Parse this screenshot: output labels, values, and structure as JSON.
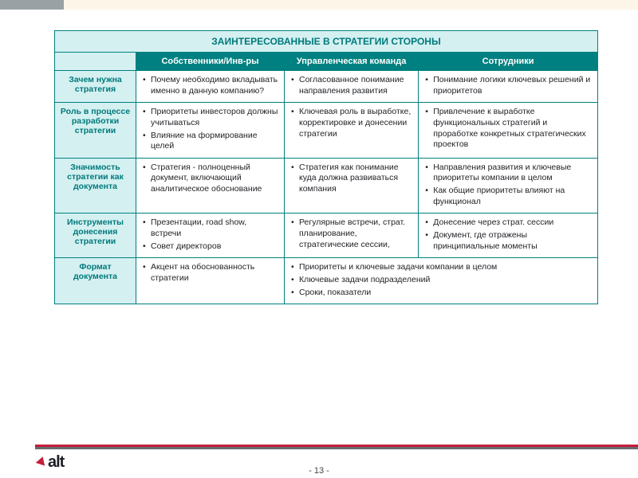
{
  "table": {
    "title": "ЗАИНТЕРЕСОВАННЫЕ В СТРАТЕГИИ СТОРОНЫ",
    "columns": [
      "Собственники/Инв-ры",
      "Управленческая команда",
      "Сотрудники"
    ],
    "rowHeaders": [
      "Зачем нужна стратегия",
      "Роль в процессе разработки стратегии",
      "Значимость стратегии как документа",
      "Инструменты донесения стратегии",
      "Формат документа"
    ],
    "rows": [
      {
        "c1": [
          "Почему необходимо вкладывать именно в данную компанию?"
        ],
        "c2": [
          "Согласованное понимание направления развития"
        ],
        "c3": [
          "Понимание логики ключевых решений и приоритетов"
        ]
      },
      {
        "c1": [
          "Приоритеты инвесторов должны учитываться",
          "Влияние на формирование целей"
        ],
        "c2": [
          "Ключевая роль в выработке, корректировке и донесении стратегии"
        ],
        "c3": [
          "Привлечение к выработке функциональных стратегий и проработке конкретных стратегических проектов"
        ]
      },
      {
        "c1": [
          "Стратегия - полноценный документ, включающий аналитическое обоснование"
        ],
        "c2": [
          "Стратегия как понимание куда должна развиваться компания"
        ],
        "c3": [
          "Направления развития и ключевые приоритеты компании в целом",
          "Как общие приоритеты влияют на функционал"
        ]
      },
      {
        "c1": [
          "Презентации, road show, встречи",
          "Совет директоров"
        ],
        "c2": [
          "Регулярные встречи, страт. планирование, стратегические сессии,"
        ],
        "c3": [
          "Донесение через страт. сессии",
          "Документ, где отражены принципиальные моменты"
        ]
      },
      {
        "c1": [
          "Акцент на обоснованность стратегии"
        ],
        "merged": [
          "Приоритеты и ключевые задачи компании в целом",
          "Ключевые задачи подразделений",
          "Сроки, показатели"
        ]
      }
    ]
  },
  "logo": "alt",
  "pageNumber": "- 13 -",
  "colors": {
    "teal": "#008080",
    "lightTeal": "#d4f0f0",
    "tealText": "#00797c",
    "red": "#c41e3a",
    "grey": "#666b6f"
  }
}
